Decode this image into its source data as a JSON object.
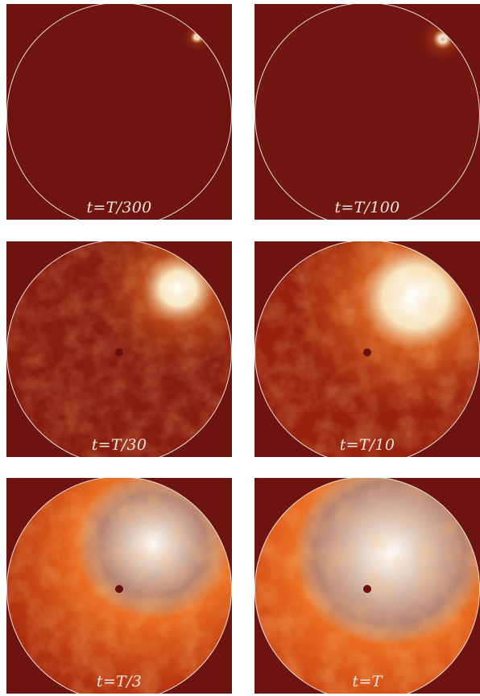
{
  "panels": [
    {
      "caption": "t=T/300",
      "stage": 0.02
    },
    {
      "caption": "t=T/100",
      "stage": 0.06
    },
    {
      "caption": "t=T/30",
      "stage": 0.35
    },
    {
      "caption": "t=T/10",
      "stage": 0.55
    },
    {
      "caption": "t=T/3",
      "stage": 0.8
    },
    {
      "caption": "t=T",
      "stage": 1.0
    }
  ],
  "colors": {
    "background": "#6e1410",
    "outline": "#e8dcd6",
    "hot": "#ffffff"
  }
}
